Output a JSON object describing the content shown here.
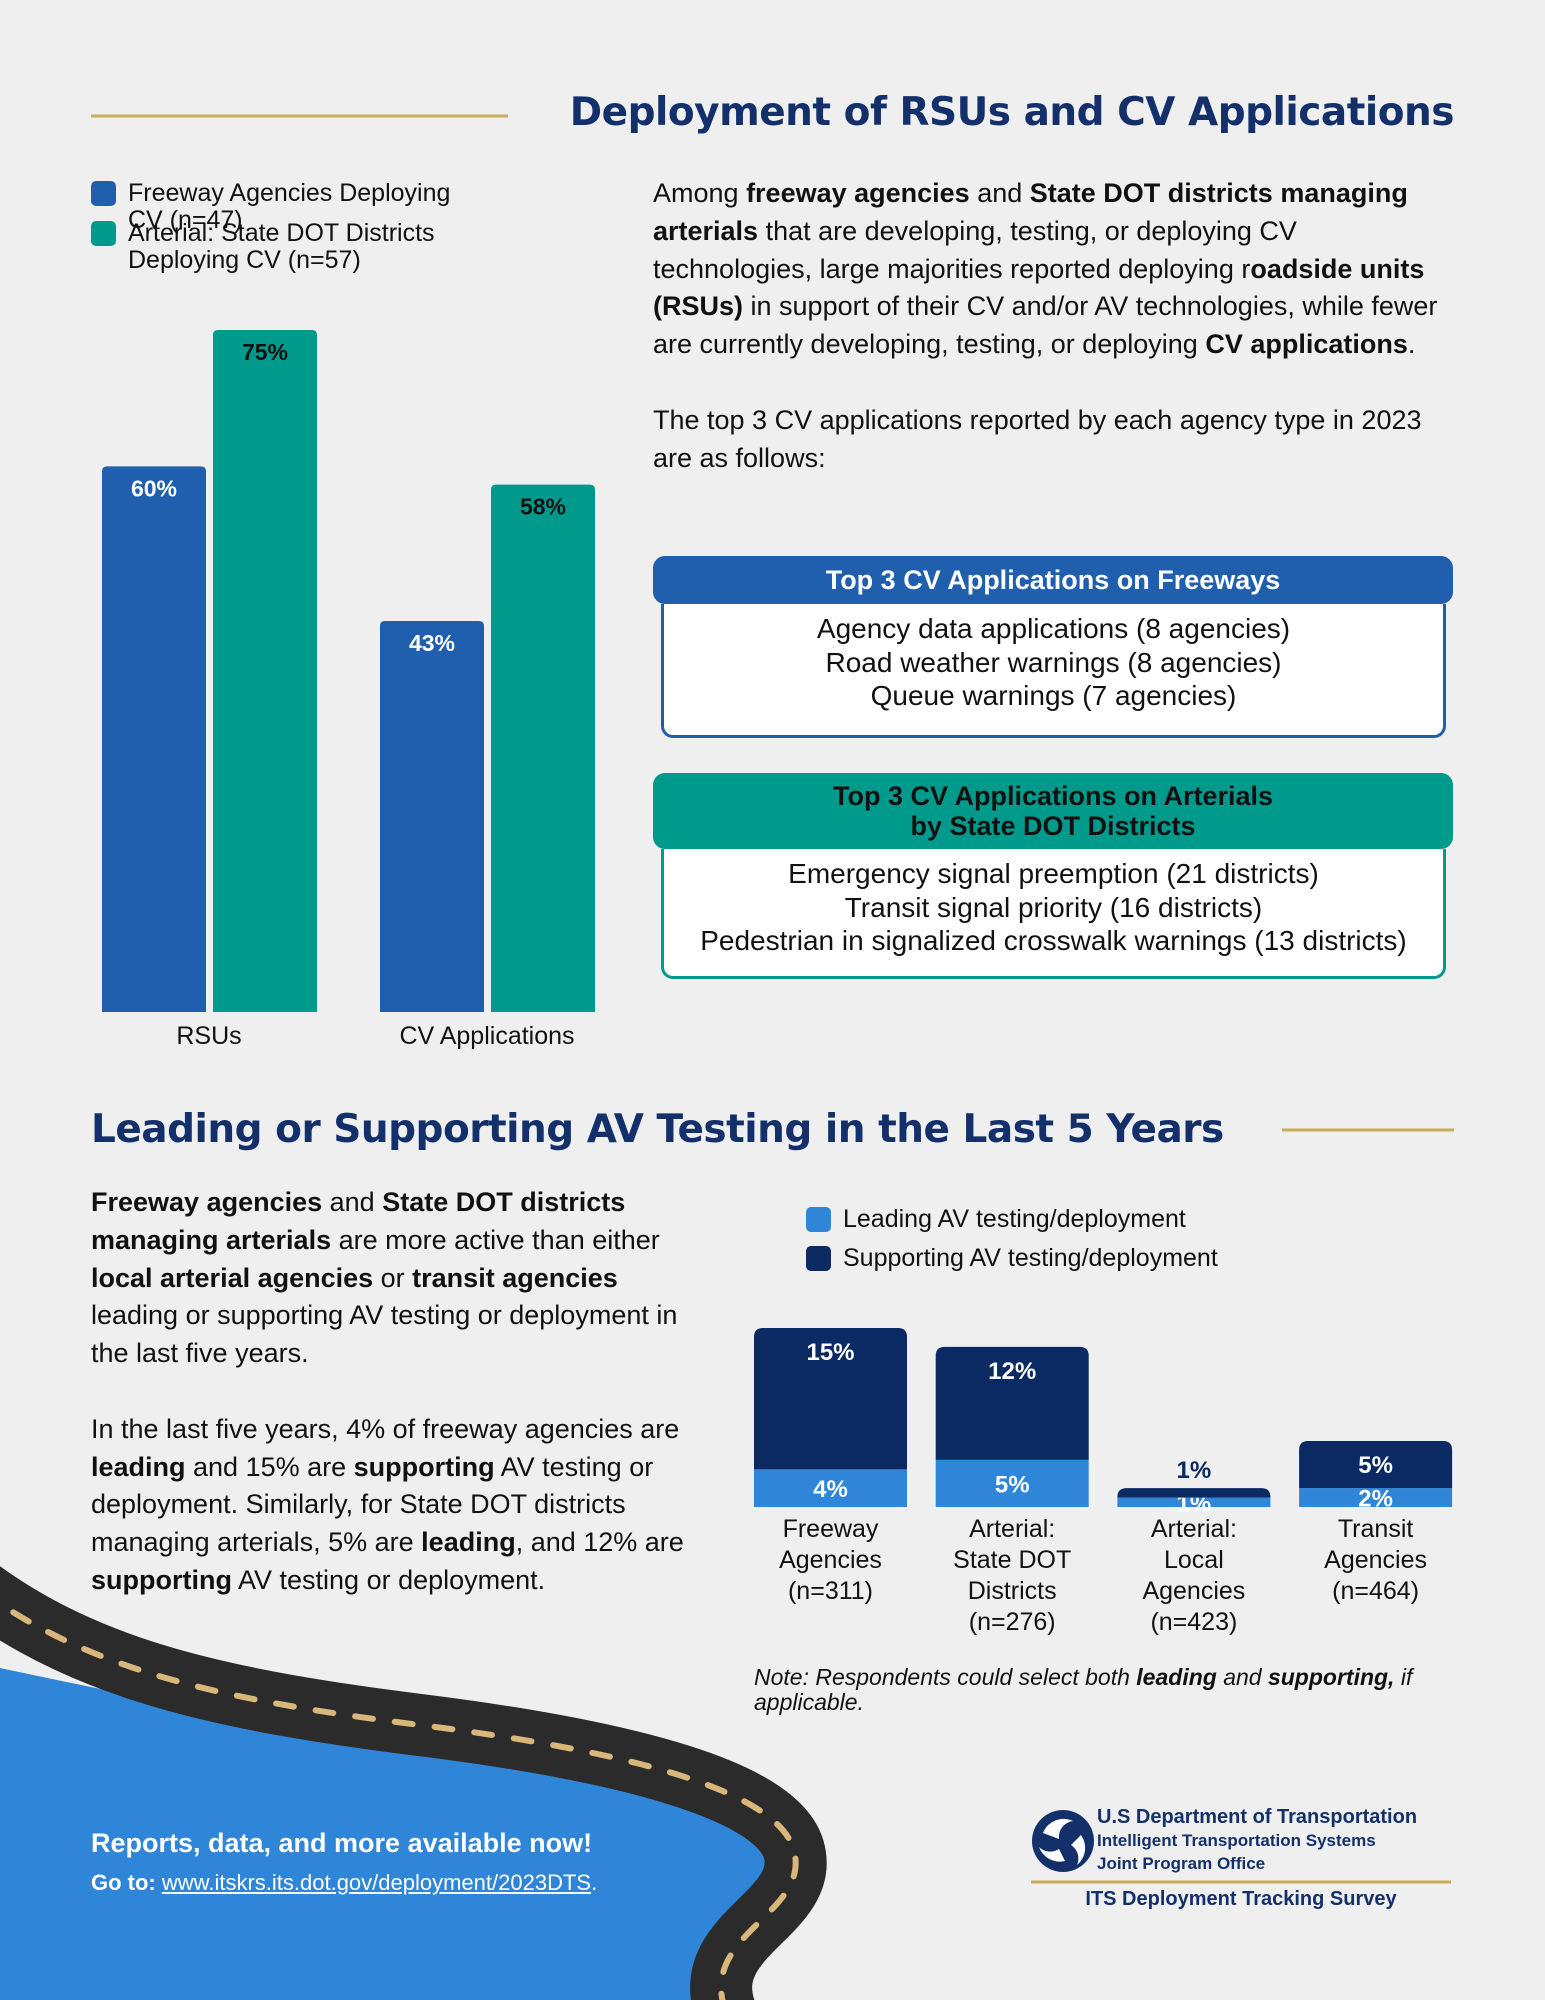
{
  "section1": {
    "title": "Deployment of RSUs and CV Applications",
    "paragraphs": [
      [
        "Among ",
        {
          "text": "freeway agencies",
          "bold": true
        },
        " and ",
        {
          "text": "State DOT districts managing arterials",
          "bold": true
        },
        " that are developing, testing, or deploying CV technologies, large majorities reported deploying r",
        {
          "text": "oadside units (RSUs)",
          "bold": true
        },
        " in support of their CV and/or AV technologies, while fewer are currently developing, testing, or deploying ",
        {
          "text": "CV applications",
          "bold": true
        },
        "."
      ],
      [
        "The top 3 CV applications reported by each agency type in 2023 are as follows:"
      ]
    ],
    "boxes": [
      {
        "title": "Top 3 CV Applications on Freeways",
        "color": "#1f5fad",
        "items": [
          "Agency data applications (8 agencies)",
          "Road weather warnings (8 agencies)",
          "Queue warnings (7 agencies)"
        ]
      },
      {
        "title": "Top 3 CV Applications on Arterials\nby State DOT Districts",
        "color": "#009a8c",
        "items": [
          "Emergency signal preemption (21 districts)",
          "Transit signal priority (16 districts)",
          "Pedestrian in signalized crosswalk warnings (13 districts)"
        ]
      }
    ]
  },
  "section2": {
    "title": "Leading or Supporting AV Testing in the Last 5 Years",
    "paragraphs": [
      [
        {
          "text": "Freeway agencies",
          "bold": true
        },
        " and ",
        {
          "text": "State DOT districts managing arterials",
          "bold": true
        },
        " are more active than either ",
        {
          "text": "local arterial agencies",
          "bold": true
        },
        " or ",
        {
          "text": "transit agencies",
          "bold": true
        },
        " leading or supporting AV testing or deployment in the last five years."
      ],
      [
        "In the last five years, 4% of freeway agencies are ",
        {
          "text": "leading",
          "bold": true
        },
        " and 15% are ",
        {
          "text": "supporting",
          "bold": true
        },
        " AV testing or deployment. Similarly, for State DOT districts managing arterials, 5% are ",
        {
          "text": "leading",
          "bold": true
        },
        ", and 12% are ",
        {
          "text": "supporting",
          "bold": true
        },
        " AV testing or deployment."
      ]
    ],
    "note": [
      "Note: Respondents could select both ",
      {
        "text": "leading",
        "bold": true
      },
      " and ",
      {
        "text": "supporting,",
        "bold": true
      },
      " if applicable."
    ]
  },
  "chart_data": [
    {
      "type": "bar",
      "categories": [
        "RSUs",
        "CV Applications"
      ],
      "series": [
        {
          "name": "Freeway Agencies Deploying CV (n=47)",
          "color": "#1f5fad",
          "values": [
            60,
            43
          ],
          "value_labels": [
            "60%",
            "43%"
          ]
        },
        {
          "name": "Arterial: State DOT Districts Deploying CV (n=57)",
          "color": "#009a8c",
          "values": [
            75,
            58
          ],
          "value_labels": [
            "75%",
            "58%"
          ]
        }
      ],
      "ylim": [
        0,
        75
      ]
    },
    {
      "type": "stacked_bar",
      "categories": [
        "Freeway\nAgencies\n(n=311)",
        "Arterial:\nState DOT\nDistricts\n(n=276)",
        "Arterial:\nLocal\nAgencies\n(n=423)",
        "Transit\nAgencies\n(n=464)"
      ],
      "series": [
        {
          "name": "Leading AV testing/deployment",
          "color": "#2f86d8",
          "values": [
            4,
            5,
            1,
            2
          ],
          "value_labels": [
            "4%",
            "5%",
            "1%",
            "2%"
          ]
        },
        {
          "name": "Supporting AV testing/deployment",
          "color": "#0b2a63",
          "values": [
            15,
            12,
            1,
            5
          ],
          "value_labels": [
            "15%",
            "12%",
            "1%",
            "5%"
          ]
        }
      ],
      "ylim": [
        0,
        19
      ]
    }
  ],
  "footer": {
    "headline": "Reports, data, and more available now!",
    "goto_label": "Go to:",
    "link": "www.itskrs.its.dot.gov/deployment/2023DTS",
    "link_end": ".",
    "org": [
      "U.S Department of Transportation",
      "Intelligent Transportation Systems",
      "Joint Program Office"
    ],
    "survey": "ITS Deployment Tracking Survey"
  }
}
